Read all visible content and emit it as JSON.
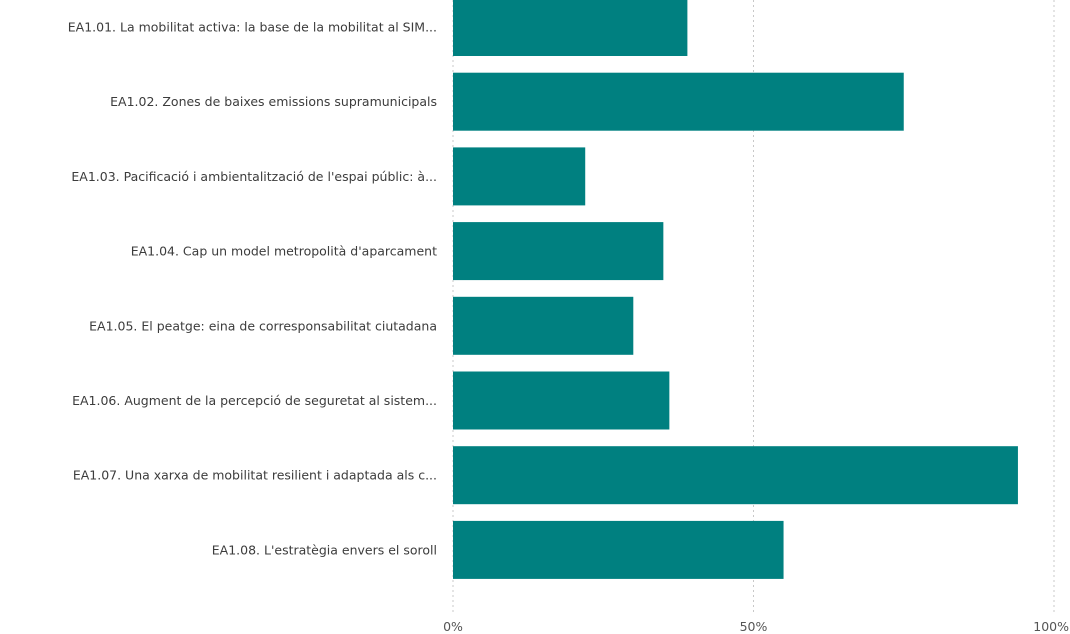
{
  "chart_data": {
    "type": "bar",
    "orientation": "horizontal",
    "categories": [
      "EA1.01. La mobilitat activa: la base de la mobilitat al SIM...",
      "EA1.02. Zones de baixes emissions supramunicipals",
      "EA1.03. Pacificació i ambientalització de l'espai públic: à...",
      "EA1.04. Cap un model metropolità d'aparcament",
      "EA1.05. El peatge: eina de corresponsabilitat ciutadana",
      "EA1.06. Augment de la percepció de seguretat al sistem...",
      "EA1.07. Una xarxa de mobilitat resilient i adaptada als c...",
      "EA1.08. L'estratègia envers el soroll"
    ],
    "values": [
      39,
      75,
      22,
      35,
      30,
      36,
      94,
      55
    ],
    "xlim": [
      0,
      100
    ],
    "x_ticks": [
      0,
      50,
      100
    ],
    "x_tick_labels": [
      "0%",
      "50%",
      "100%"
    ],
    "grid": "vertical dotted",
    "title": "",
    "xlabel": "",
    "ylabel": "",
    "bar_color": "#008080"
  }
}
